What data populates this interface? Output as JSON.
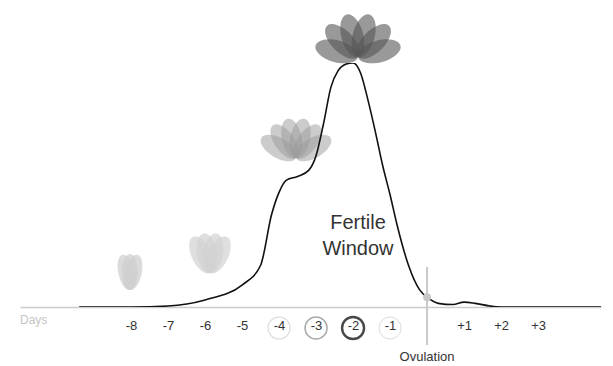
{
  "chart_data": {
    "type": "line",
    "x": [
      -9.4,
      -8,
      -7,
      -6,
      -5,
      -4.5,
      -4.2,
      -4,
      -3.8,
      -3.5,
      -3.2,
      -3,
      -2.8,
      -2.6,
      -2.4,
      -2.2,
      -2,
      -1.8,
      -1.6,
      -1.4,
      -1.2,
      -1,
      -0.8,
      -0.5,
      -0.2,
      0,
      0.3,
      0.7,
      1,
      1.3,
      1.7,
      2,
      3,
      4.7
    ],
    "values": [
      0,
      0,
      0.4,
      2.9,
      9,
      17,
      38,
      47,
      52,
      53.5,
      56,
      62,
      75,
      90,
      97,
      99.5,
      100,
      96,
      85,
      72,
      58,
      46,
      33,
      17,
      7,
      4,
      1.5,
      1,
      2,
      1.5,
      0.4,
      0,
      0,
      0
    ],
    "color": "#111111",
    "xlim": [
      -11,
      4.7
    ],
    "ylim": [
      0,
      100
    ],
    "xticks": [
      -8,
      -7,
      -6,
      -5,
      -4,
      -3,
      -2,
      -1,
      {
        "value": 1,
        "label": "+1"
      },
      {
        "value": 2,
        "label": "+2"
      },
      {
        "value": 3,
        "label": "+3"
      }
    ],
    "x_label": "Days",
    "tick_labels": "x",
    "fertile_window": [
      -4,
      -1
    ],
    "annotations": [
      {
        "text": "Fertile Window"
      },
      {
        "text": "Ovulation",
        "x": 0
      }
    ]
  }
}
